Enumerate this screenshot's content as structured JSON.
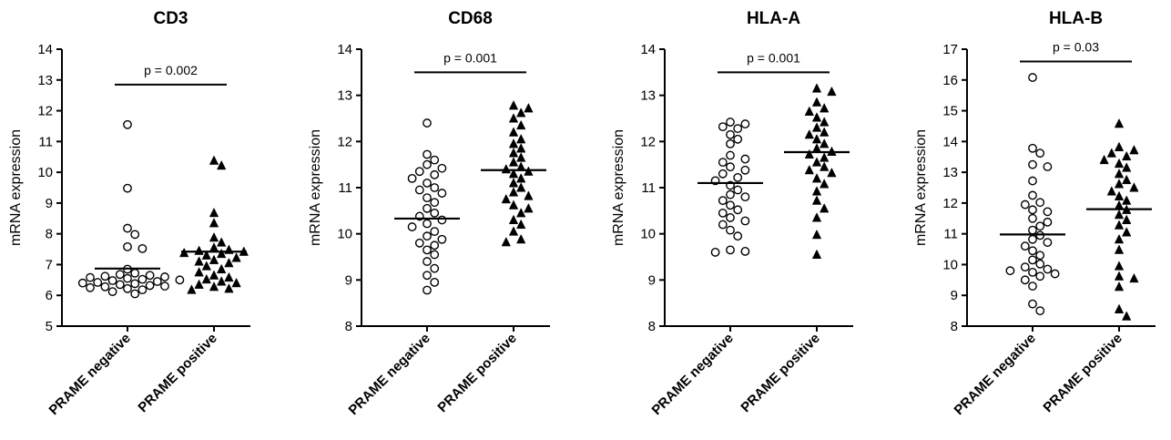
{
  "chart_data": [
    {
      "type": "scatter",
      "title": "CD3",
      "ylabel": "mRNA expression",
      "ylim": [
        5,
        14
      ],
      "yticks": [
        5,
        6,
        7,
        8,
        9,
        10,
        11,
        12,
        13,
        14
      ],
      "categories": [
        "PRAME negative",
        "PRAME positive"
      ],
      "p_label": "p = 0.002",
      "series": [
        {
          "marker": "circle-open",
          "mean": 6.87,
          "values": [
            11.55,
            9.48,
            8.18,
            7.98,
            7.58,
            7.52,
            6.85,
            6.72,
            6.68,
            6.65,
            6.62,
            6.6,
            6.58,
            6.55,
            6.52,
            6.5,
            6.48,
            6.45,
            6.42,
            6.4,
            6.38,
            6.35,
            6.32,
            6.3,
            6.28,
            6.25,
            6.22,
            6.18,
            6.12,
            6.05
          ]
        },
        {
          "marker": "triangle-filled",
          "mean": 7.42,
          "values": [
            10.38,
            10.22,
            8.68,
            8.35,
            7.88,
            7.72,
            7.55,
            7.48,
            7.45,
            7.42,
            7.38,
            7.35,
            7.3,
            7.22,
            7.15,
            7.1,
            7.05,
            6.95,
            6.85,
            6.75,
            6.65,
            6.58,
            6.52,
            6.45,
            6.4,
            6.35,
            6.28,
            6.22,
            6.18
          ]
        }
      ]
    },
    {
      "type": "scatter",
      "title": "CD68",
      "ylabel": "mRNA expression",
      "ylim": [
        8,
        14
      ],
      "yticks": [
        8,
        9,
        10,
        11,
        12,
        13,
        14
      ],
      "categories": [
        "PRAME negative",
        "PRAME positive"
      ],
      "p_label": "p = 0.001",
      "series": [
        {
          "marker": "circle-open",
          "mean": 10.33,
          "values": [
            12.4,
            11.72,
            11.6,
            11.5,
            11.42,
            11.35,
            11.28,
            11.2,
            11.1,
            11.0,
            10.95,
            10.88,
            10.78,
            10.68,
            10.55,
            10.45,
            10.38,
            10.3,
            10.22,
            10.15,
            10.05,
            9.95,
            9.88,
            9.8,
            9.75,
            9.65,
            9.55,
            9.4,
            9.25,
            9.1,
            8.95,
            8.78
          ]
        },
        {
          "marker": "triangle-filled",
          "mean": 11.38,
          "values": [
            12.78,
            12.72,
            12.62,
            12.5,
            12.35,
            12.2,
            12.05,
            11.95,
            11.85,
            11.75,
            11.65,
            11.55,
            11.45,
            11.4,
            11.35,
            11.3,
            11.2,
            11.1,
            11.0,
            10.9,
            10.82,
            10.75,
            10.62,
            10.55,
            10.45,
            10.3,
            10.2,
            10.05,
            9.88,
            9.82
          ]
        }
      ]
    },
    {
      "type": "scatter",
      "title": "HLA-A",
      "ylabel": "mRNA expression",
      "ylim": [
        8,
        14
      ],
      "yticks": [
        8,
        9,
        10,
        11,
        12,
        13,
        14
      ],
      "categories": [
        "PRAME negative",
        "PRAME positive"
      ],
      "p_label": "p = 0.001",
      "series": [
        {
          "marker": "circle-open",
          "mean": 11.1,
          "values": [
            12.42,
            12.38,
            12.32,
            12.28,
            12.15,
            12.05,
            11.95,
            11.7,
            11.62,
            11.55,
            11.45,
            11.38,
            11.3,
            11.22,
            11.15,
            11.05,
            10.95,
            10.85,
            10.8,
            10.72,
            10.62,
            10.52,
            10.45,
            10.35,
            10.28,
            10.2,
            10.08,
            9.95,
            9.65,
            9.62,
            9.6
          ]
        },
        {
          "marker": "triangle-filled",
          "mean": 11.77,
          "values": [
            13.15,
            13.08,
            12.85,
            12.72,
            12.65,
            12.52,
            12.42,
            12.3,
            12.2,
            12.15,
            12.05,
            11.95,
            11.85,
            11.78,
            11.72,
            11.65,
            11.55,
            11.45,
            11.38,
            11.32,
            11.2,
            11.08,
            10.92,
            10.72,
            10.55,
            10.35,
            9.98,
            9.55
          ]
        }
      ]
    },
    {
      "type": "scatter",
      "title": "HLA-B",
      "ylabel": "mRNA expression",
      "ylim": [
        8,
        17
      ],
      "yticks": [
        8,
        9,
        10,
        11,
        12,
        13,
        14,
        15,
        16,
        17
      ],
      "categories": [
        "PRAME negative",
        "PRAME positive"
      ],
      "p_label": "p = 0.03",
      "series": [
        {
          "marker": "circle-open",
          "mean": 10.98,
          "values": [
            16.08,
            13.78,
            13.62,
            13.25,
            13.18,
            12.72,
            12.25,
            12.02,
            11.95,
            11.78,
            11.72,
            11.5,
            11.38,
            11.25,
            11.12,
            10.95,
            10.82,
            10.72,
            10.6,
            10.45,
            10.3,
            10.15,
            10.02,
            9.92,
            9.85,
            9.8,
            9.75,
            9.7,
            9.62,
            9.5,
            9.3,
            8.72,
            8.5
          ]
        },
        {
          "marker": "triangle-filled",
          "mean": 11.8,
          "values": [
            14.58,
            13.82,
            13.72,
            13.62,
            13.52,
            13.4,
            13.28,
            13.15,
            12.95,
            12.75,
            12.62,
            12.5,
            12.38,
            12.22,
            12.08,
            11.92,
            11.78,
            11.62,
            11.45,
            11.28,
            11.05,
            10.82,
            10.48,
            9.95,
            9.62,
            9.55,
            9.28,
            8.55,
            8.32
          ]
        }
      ]
    }
  ]
}
